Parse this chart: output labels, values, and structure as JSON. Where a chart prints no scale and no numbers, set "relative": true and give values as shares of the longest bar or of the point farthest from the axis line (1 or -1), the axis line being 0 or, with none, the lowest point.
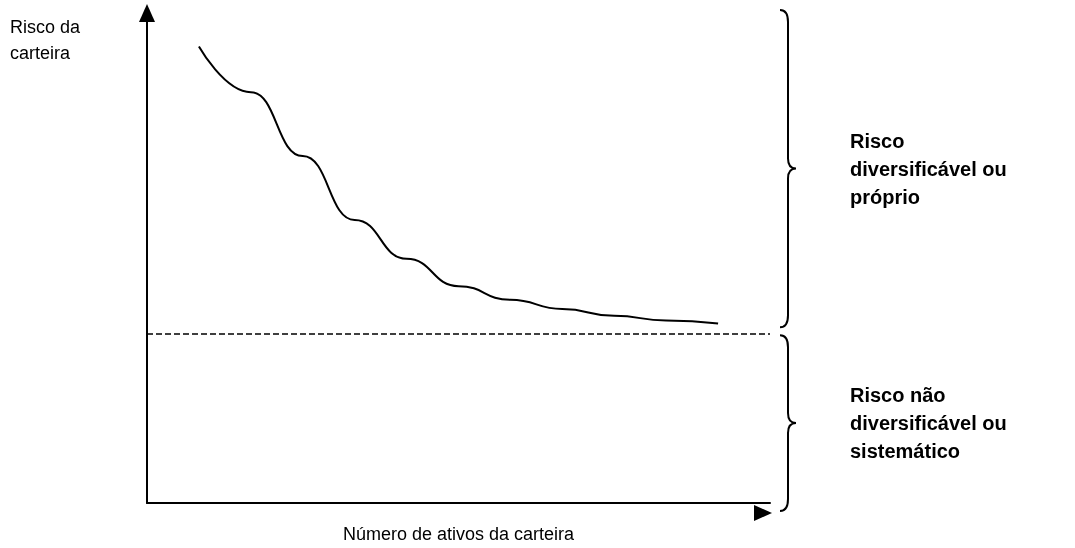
{
  "chart_data": {
    "type": "line",
    "relative": true,
    "xlabel": "Número de ativos da carteira",
    "ylabel": "Risco da carteira",
    "categories": [
      null,
      null,
      null,
      null,
      null,
      null,
      null,
      null,
      null,
      null,
      null,
      null,
      null
    ],
    "series": [
      {
        "color": "#000000",
        "values": [
          null,
          1.0,
          0.9,
          0.76,
          0.62,
          0.535,
          0.475,
          0.445,
          0.425,
          0.41,
          0.4,
          0.393,
          null
        ]
      }
    ],
    "ref_lines": [
      {
        "axis": "y",
        "value": 0.372,
        "line_style": "dashed",
        "color": "#000000"
      }
    ],
    "annotations": [
      "Risco diversificável ou próprio",
      "Risco não diversificável ou sistemático"
    ],
    "grid": false
  }
}
